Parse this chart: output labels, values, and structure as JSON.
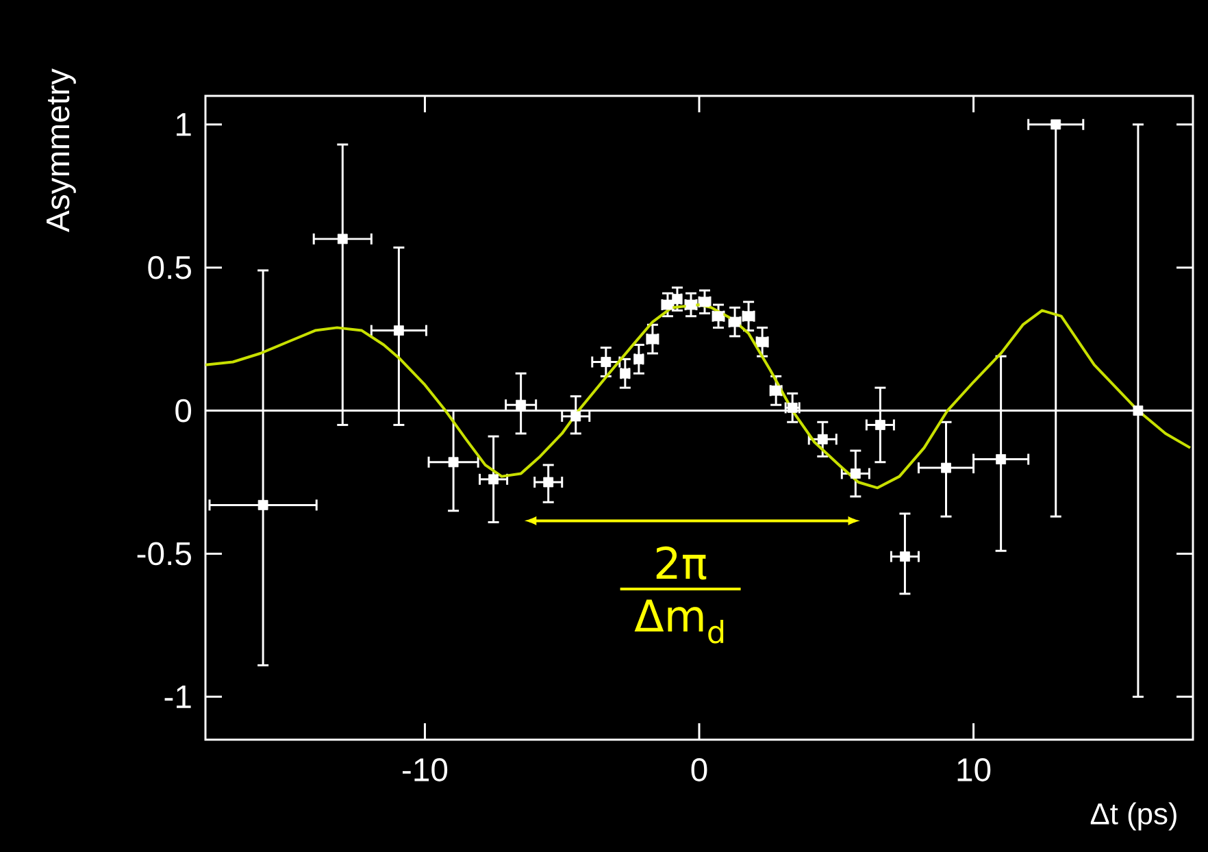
{
  "chart_data": {
    "type": "scatter",
    "xlabel": "Δt (ps)",
    "ylabel": "Asymmetry",
    "xlim": [
      -18,
      18
    ],
    "ylim": [
      -1.15,
      1.1
    ],
    "xticks": [
      -10,
      0,
      10
    ],
    "yticks": [
      -1,
      -0.5,
      0,
      0.5,
      1
    ],
    "ref_lines": [
      {
        "axis": "y",
        "value": 0,
        "color": "#ffffff"
      }
    ],
    "annotations": [
      "2π",
      "Δm$_{d}$"
    ],
    "series": [
      {
        "color": "#ffffff",
        "marker": "square",
        "x": [
          -15.9,
          -13.0,
          -10.95,
          -8.96,
          -7.5,
          -6.5,
          -5.5,
          -4.5,
          -3.4,
          -2.7,
          -2.2,
          -1.7,
          -1.15,
          -0.8,
          -0.3,
          0.2,
          0.7,
          1.3,
          1.8,
          2.3,
          2.8,
          3.4,
          4.5,
          5.7,
          6.6,
          7.5,
          9.0,
          11.0,
          13.0,
          16.0
        ],
        "values": [
          -0.33,
          0.6,
          0.28,
          -0.18,
          -0.24,
          0.02,
          -0.25,
          -0.02,
          0.17,
          0.13,
          0.18,
          0.25,
          0.37,
          0.39,
          0.37,
          0.38,
          0.33,
          0.31,
          0.33,
          0.24,
          0.07,
          0.01,
          -0.1,
          -0.22,
          -0.05,
          -0.51,
          -0.2,
          -0.17,
          1.0,
          0.0
        ],
        "errors": [
          [
            -0.89,
            0.49
          ],
          [
            -0.05,
            0.93
          ],
          [
            -0.05,
            0.57
          ],
          [
            -0.35,
            0.0
          ],
          [
            -0.39,
            -0.09
          ],
          [
            -0.08,
            0.13
          ],
          [
            -0.32,
            -0.19
          ],
          [
            -0.08,
            0.05
          ],
          0.05,
          0.05,
          0.05,
          0.05,
          0.04,
          0.04,
          0.04,
          0.04,
          0.04,
          0.05,
          0.05,
          0.05,
          0.05,
          0.05,
          0.06,
          0.08,
          [
            -0.18,
            0.08
          ],
          [
            -0.64,
            -0.36
          ],
          [
            -0.37,
            -0.04
          ],
          [
            -0.49,
            0.19
          ],
          [
            -0.37,
            1.0
          ],
          [
            -1.0,
            1.0
          ]
        ],
        "xerrors": [
          1.95,
          1.05,
          1.0,
          0.9,
          0.5,
          0.55,
          0.5,
          0.5,
          0.5,
          0.15,
          0.15,
          0.2,
          0.2,
          0.15,
          0.2,
          0.2,
          0.2,
          0.2,
          0.2,
          0.2,
          0.2,
          0.25,
          0.5,
          0.5,
          0.5,
          0.5,
          1.0,
          1.0,
          1.0,
          null
        ]
      },
      {
        "type": "line",
        "color": "#c8e000",
        "marker": "none",
        "x": [
          -18,
          -17,
          -16,
          -15,
          -14,
          -13.2,
          -12.3,
          -11.5,
          -10.9,
          -10,
          -9.25,
          -8.5,
          -7.8,
          -7.2,
          -6.5,
          -5.8,
          -5,
          -4.4,
          -3.8,
          -3.2,
          -2.5,
          -1.7,
          -1.0,
          0,
          0.45,
          1.2,
          1.8,
          2.6,
          3.4,
          4.2,
          5.1,
          5.8,
          6.5,
          7.3,
          8.2,
          9.05,
          10,
          11.0,
          11.8,
          12.5,
          13.2,
          14.4,
          15.2,
          16.0,
          17,
          17.9
        ],
        "values": [
          0.16,
          0.17,
          0.2,
          0.24,
          0.28,
          0.29,
          0.28,
          0.23,
          0.18,
          0.09,
          0.0,
          -0.1,
          -0.19,
          -0.23,
          -0.22,
          -0.16,
          -0.08,
          0.0,
          0.07,
          0.14,
          0.22,
          0.31,
          0.36,
          0.37,
          0.36,
          0.32,
          0.27,
          0.14,
          0.0,
          -0.11,
          -0.19,
          -0.25,
          -0.27,
          -0.23,
          -0.13,
          0.0,
          0.1,
          0.2,
          0.3,
          0.35,
          0.33,
          0.16,
          0.08,
          0.0,
          -0.08,
          -0.13
        ]
      }
    ]
  }
}
